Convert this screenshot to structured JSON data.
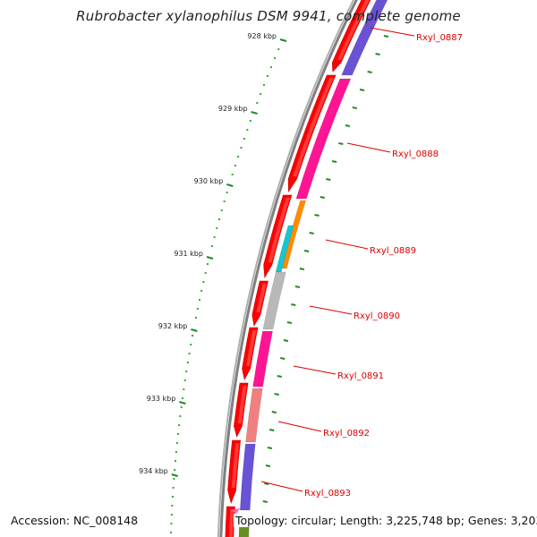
{
  "title": "Rubrobacter xylanophilus DSM 9941, complete genome",
  "accession": "Accession: NC_008148",
  "topology": "Topology: circular",
  "length": "Length: 3,225,748 bp",
  "genes": "Genes: 3,203",
  "ticks": [
    {
      "label": "928 kbp",
      "kbp": 928
    },
    {
      "label": "929 kbp",
      "kbp": 929
    },
    {
      "label": "930 kbp",
      "kbp": 930
    },
    {
      "label": "931 kbp",
      "kbp": 931
    },
    {
      "label": "932 kbp",
      "kbp": 932
    },
    {
      "label": "933 kbp",
      "kbp": 933
    },
    {
      "label": "934 kbp",
      "kbp": 934
    }
  ],
  "genes_forward": [
    {
      "id": "Rxyl_0887",
      "color": "#6a52d6"
    },
    {
      "id": "Rxyl_0888",
      "color": "#ff1493"
    },
    {
      "id": "Rxyl_0889a",
      "color": "#ff8c00"
    },
    {
      "id": "Rxyl_0889",
      "color": "#17c5d0"
    },
    {
      "id": "Rxyl_0890",
      "color": "#b8b8b8"
    },
    {
      "id": "Rxyl_0891",
      "color": "#ff1493"
    },
    {
      "id": "Rxyl_0892",
      "color": "#f08080"
    },
    {
      "id": "Rxyl_0893",
      "color": "#6a52d6"
    },
    {
      "id": "next-gene",
      "color": "#6b8e23"
    }
  ],
  "gene_labels": [
    "Rxyl_0887",
    "Rxyl_0888",
    "Rxyl_0889",
    "Rxyl_0890",
    "Rxyl_0891",
    "Rxyl_0892",
    "Rxyl_0893"
  ],
  "colors": {
    "cds_arrow": "#ff0000",
    "backbone": "#808080",
    "tick": "#228b22",
    "label": "#dd0000",
    "skew_dots": "#33aa33"
  }
}
